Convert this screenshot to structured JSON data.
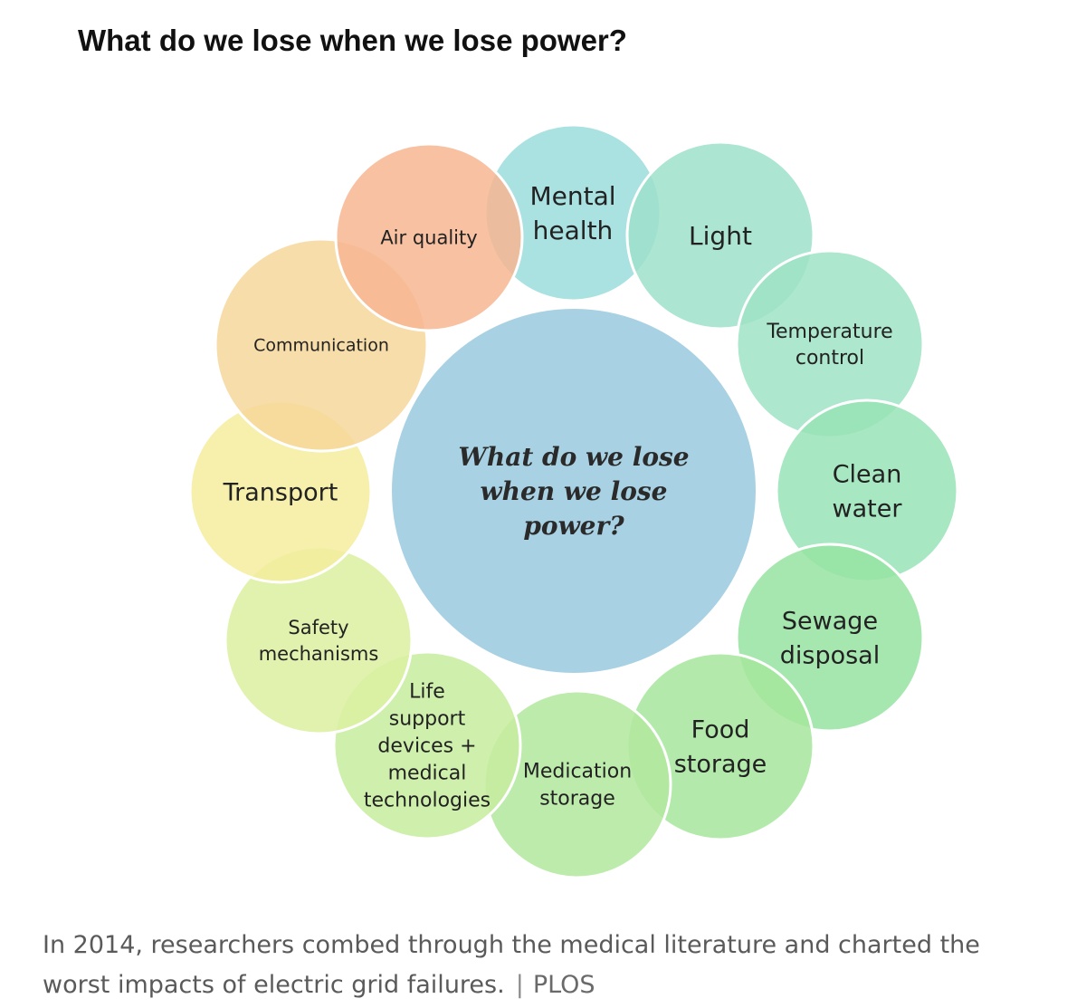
{
  "heading": "What do we lose when we lose power?",
  "center": {
    "lines": [
      "What do we lose",
      "when we lose",
      "power?"
    ],
    "color": "#a8d1e3"
  },
  "petals": [
    {
      "id": "mental-health",
      "lines": [
        "Mental",
        "health"
      ],
      "color": "#9bdcdc"
    },
    {
      "id": "light",
      "lines": [
        "Light"
      ],
      "color": "#9ee0ca"
    },
    {
      "id": "temperature-control",
      "lines": [
        "Temperature",
        "control"
      ],
      "color": "#9fe3c4"
    },
    {
      "id": "clean-water",
      "lines": [
        "Clean",
        "water"
      ],
      "color": "#98e3b6"
    },
    {
      "id": "sewage-disposal",
      "lines": [
        "Sewage",
        "disposal"
      ],
      "color": "#96e3a2"
    },
    {
      "id": "food-storage",
      "lines": [
        "Food",
        "storage"
      ],
      "color": "#a6e69c"
    },
    {
      "id": "medication-storage",
      "lines": [
        "Medication",
        "storage"
      ],
      "color": "#b2e79c"
    },
    {
      "id": "life-support",
      "lines": [
        "Life",
        "support",
        "devices +",
        "medical",
        "technologies"
      ],
      "color": "#c7ec9e"
    },
    {
      "id": "safety-mechanisms",
      "lines": [
        "Safety",
        "mechanisms"
      ],
      "color": "#dcf0a0"
    },
    {
      "id": "transport",
      "lines": [
        "Transport"
      ],
      "color": "#f4ed9e"
    },
    {
      "id": "communication",
      "lines": [
        "Communication"
      ],
      "color": "#f6d79a"
    },
    {
      "id": "air-quality",
      "lines": [
        "Air quality"
      ],
      "color": "#f7b692"
    }
  ],
  "caption": {
    "text": "In 2014, researchers combed through the medical literature and charted the worst impacts of electric grid failures.",
    "separator": "|",
    "source": "PLOS"
  }
}
